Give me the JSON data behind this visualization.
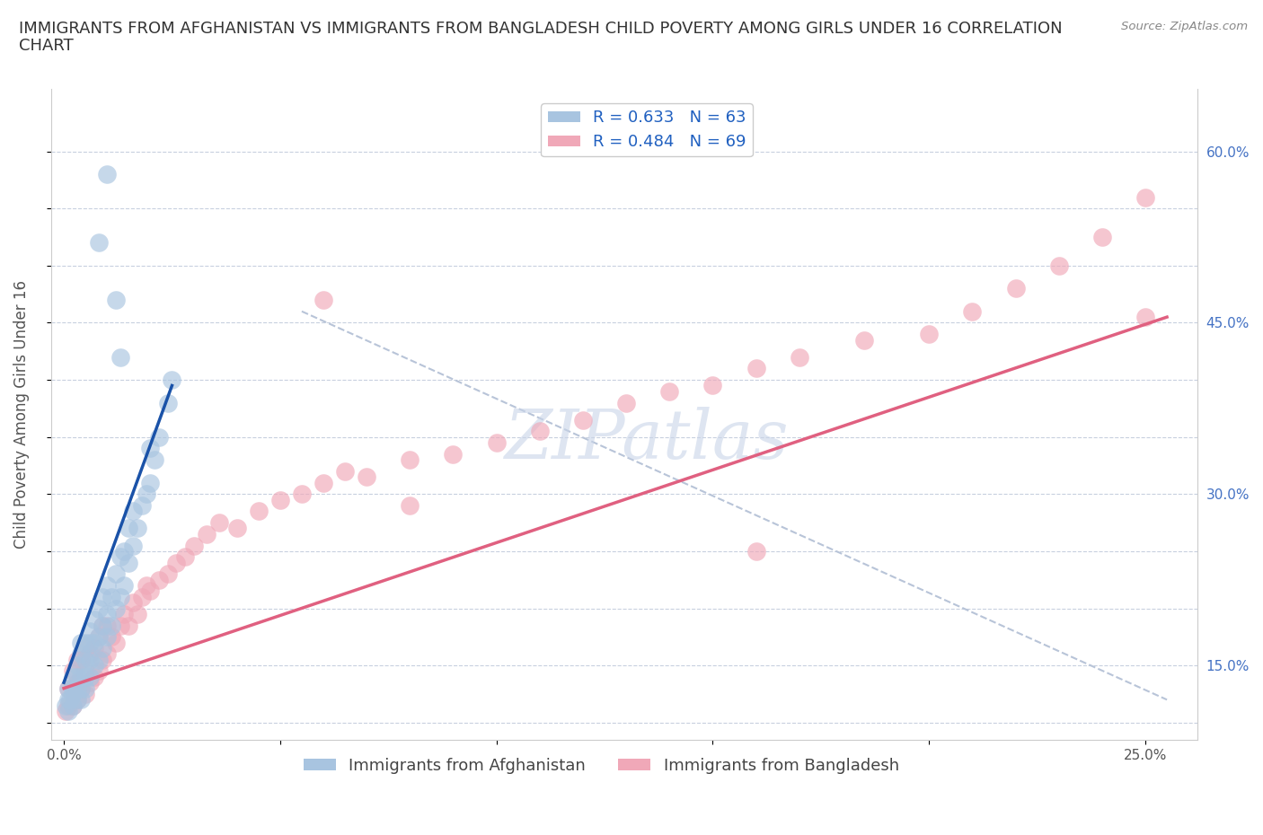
{
  "title": "IMMIGRANTS FROM AFGHANISTAN VS IMMIGRANTS FROM BANGLADESH CHILD POVERTY AMONG GIRLS UNDER 16 CORRELATION\nCHART",
  "source_text": "Source: ZipAtlas.com",
  "ylabel": "Child Poverty Among Girls Under 16",
  "afghanistan_R": 0.633,
  "afghanistan_N": 63,
  "bangladesh_R": 0.484,
  "bangladesh_N": 69,
  "afghanistan_color": "#a8c4e0",
  "bangladesh_color": "#f0a8b8",
  "afghanistan_line_color": "#1a52a8",
  "bangladesh_line_color": "#e06080",
  "ref_line_color": "#b8c4d8",
  "watermark_color": "#c8d4e8",
  "x_ticks": [
    0.0,
    0.05,
    0.1,
    0.15,
    0.2,
    0.25
  ],
  "x_tick_labels": [
    "0.0%",
    "",
    "",
    "",
    "",
    "25.0%"
  ],
  "y_ticks": [
    0.1,
    0.15,
    0.2,
    0.25,
    0.3,
    0.35,
    0.4,
    0.45,
    0.5,
    0.55,
    0.6
  ],
  "y_tick_labels_right": [
    "",
    "15.0%",
    "",
    "",
    "30.0%",
    "",
    "",
    "45.0%",
    "",
    "",
    "60.0%"
  ],
  "xlim": [
    -0.003,
    0.262
  ],
  "ylim": [
    0.085,
    0.655
  ],
  "afghanistan_x": [
    0.0005,
    0.001,
    0.001,
    0.001,
    0.0015,
    0.002,
    0.002,
    0.002,
    0.002,
    0.003,
    0.003,
    0.003,
    0.003,
    0.004,
    0.004,
    0.004,
    0.004,
    0.004,
    0.005,
    0.005,
    0.005,
    0.005,
    0.006,
    0.006,
    0.006,
    0.006,
    0.007,
    0.007,
    0.007,
    0.008,
    0.008,
    0.008,
    0.009,
    0.009,
    0.009,
    0.01,
    0.01,
    0.01,
    0.011,
    0.011,
    0.012,
    0.012,
    0.013,
    0.013,
    0.014,
    0.014,
    0.015,
    0.015,
    0.016,
    0.016,
    0.017,
    0.018,
    0.019,
    0.02,
    0.02,
    0.021,
    0.022,
    0.024,
    0.025,
    0.012,
    0.008,
    0.01,
    0.013
  ],
  "afghanistan_y": [
    0.115,
    0.12,
    0.13,
    0.11,
    0.12,
    0.115,
    0.125,
    0.13,
    0.14,
    0.12,
    0.13,
    0.14,
    0.15,
    0.12,
    0.13,
    0.14,
    0.16,
    0.17,
    0.13,
    0.14,
    0.155,
    0.17,
    0.14,
    0.155,
    0.17,
    0.18,
    0.15,
    0.17,
    0.19,
    0.155,
    0.175,
    0.2,
    0.165,
    0.185,
    0.21,
    0.175,
    0.195,
    0.22,
    0.185,
    0.21,
    0.2,
    0.23,
    0.21,
    0.245,
    0.22,
    0.25,
    0.24,
    0.27,
    0.255,
    0.285,
    0.27,
    0.29,
    0.3,
    0.31,
    0.34,
    0.33,
    0.35,
    0.38,
    0.4,
    0.47,
    0.52,
    0.58,
    0.42
  ],
  "bangladesh_x": [
    0.0005,
    0.001,
    0.001,
    0.002,
    0.002,
    0.002,
    0.003,
    0.003,
    0.003,
    0.004,
    0.004,
    0.005,
    0.005,
    0.005,
    0.006,
    0.006,
    0.007,
    0.007,
    0.008,
    0.008,
    0.009,
    0.009,
    0.01,
    0.01,
    0.011,
    0.012,
    0.013,
    0.014,
    0.015,
    0.016,
    0.017,
    0.018,
    0.019,
    0.02,
    0.022,
    0.024,
    0.026,
    0.028,
    0.03,
    0.033,
    0.036,
    0.04,
    0.045,
    0.05,
    0.055,
    0.06,
    0.065,
    0.07,
    0.08,
    0.09,
    0.1,
    0.11,
    0.12,
    0.13,
    0.14,
    0.15,
    0.16,
    0.17,
    0.185,
    0.2,
    0.21,
    0.22,
    0.23,
    0.24,
    0.25,
    0.25,
    0.06,
    0.08,
    0.16
  ],
  "bangladesh_y": [
    0.11,
    0.115,
    0.13,
    0.115,
    0.13,
    0.145,
    0.12,
    0.135,
    0.155,
    0.13,
    0.155,
    0.125,
    0.145,
    0.165,
    0.135,
    0.16,
    0.14,
    0.165,
    0.145,
    0.175,
    0.155,
    0.185,
    0.16,
    0.185,
    0.175,
    0.17,
    0.185,
    0.195,
    0.185,
    0.205,
    0.195,
    0.21,
    0.22,
    0.215,
    0.225,
    0.23,
    0.24,
    0.245,
    0.255,
    0.265,
    0.275,
    0.27,
    0.285,
    0.295,
    0.3,
    0.31,
    0.32,
    0.315,
    0.33,
    0.335,
    0.345,
    0.355,
    0.365,
    0.38,
    0.39,
    0.395,
    0.41,
    0.42,
    0.435,
    0.44,
    0.46,
    0.48,
    0.5,
    0.525,
    0.455,
    0.56,
    0.47,
    0.29,
    0.25
  ],
  "af_line_x": [
    0.0,
    0.025
  ],
  "af_line_y": [
    0.135,
    0.395
  ],
  "bd_line_x": [
    0.0,
    0.255
  ],
  "bd_line_y": [
    0.13,
    0.455
  ],
  "ref_line_x": [
    0.055,
    0.255
  ],
  "ref_line_y": [
    0.46,
    0.12
  ],
  "title_fontsize": 13,
  "axis_label_fontsize": 12,
  "tick_fontsize": 11,
  "legend_fontsize": 13
}
